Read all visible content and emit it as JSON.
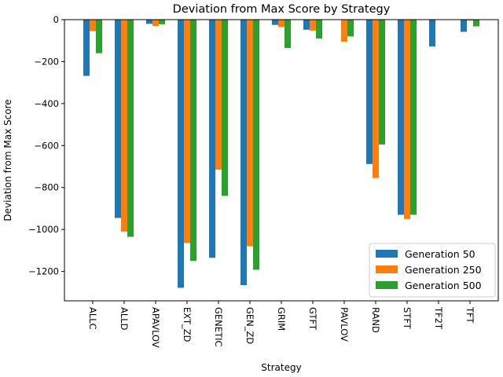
{
  "chart_data": {
    "type": "bar",
    "title": "Deviation from Max Score by Strategy",
    "xlabel": "Strategy",
    "ylabel": "Deviation from Max Score",
    "categories": [
      "ALLC",
      "ALLD",
      "APAVLOV",
      "EXT_ZD",
      "GENETIC",
      "GEN_ZD",
      "GRIM",
      "GTFT",
      "PAVLOV",
      "RAND",
      "STFT",
      "TF2T",
      "TFT"
    ],
    "series": [
      {
        "name": "Generation 50",
        "color": "#1f77b4",
        "values": [
          -268,
          -945,
          -20,
          -1278,
          -1135,
          -1265,
          -25,
          -48,
          0,
          -688,
          -930,
          -128,
          -58
        ]
      },
      {
        "name": "Generation 250",
        "color": "#ff7f0e",
        "values": [
          -55,
          -1010,
          -30,
          -1065,
          -715,
          -1080,
          -35,
          -52,
          -105,
          -755,
          -950,
          0,
          -5
        ]
      },
      {
        "name": "Generation 500",
        "color": "#2ca02c",
        "values": [
          -160,
          -1035,
          -22,
          -1150,
          -840,
          -1192,
          -135,
          -90,
          -80,
          -595,
          -930,
          0,
          -32
        ]
      }
    ],
    "ylim": [
      -1340,
      0
    ],
    "yticks": [
      0,
      -200,
      -400,
      -600,
      -800,
      -1000,
      -1200
    ],
    "ytick_labels": [
      "0",
      "−200",
      "−400",
      "−600",
      "−800",
      "−1000",
      "−1200"
    ],
    "legend_position": "lower-right",
    "grid": false
  }
}
